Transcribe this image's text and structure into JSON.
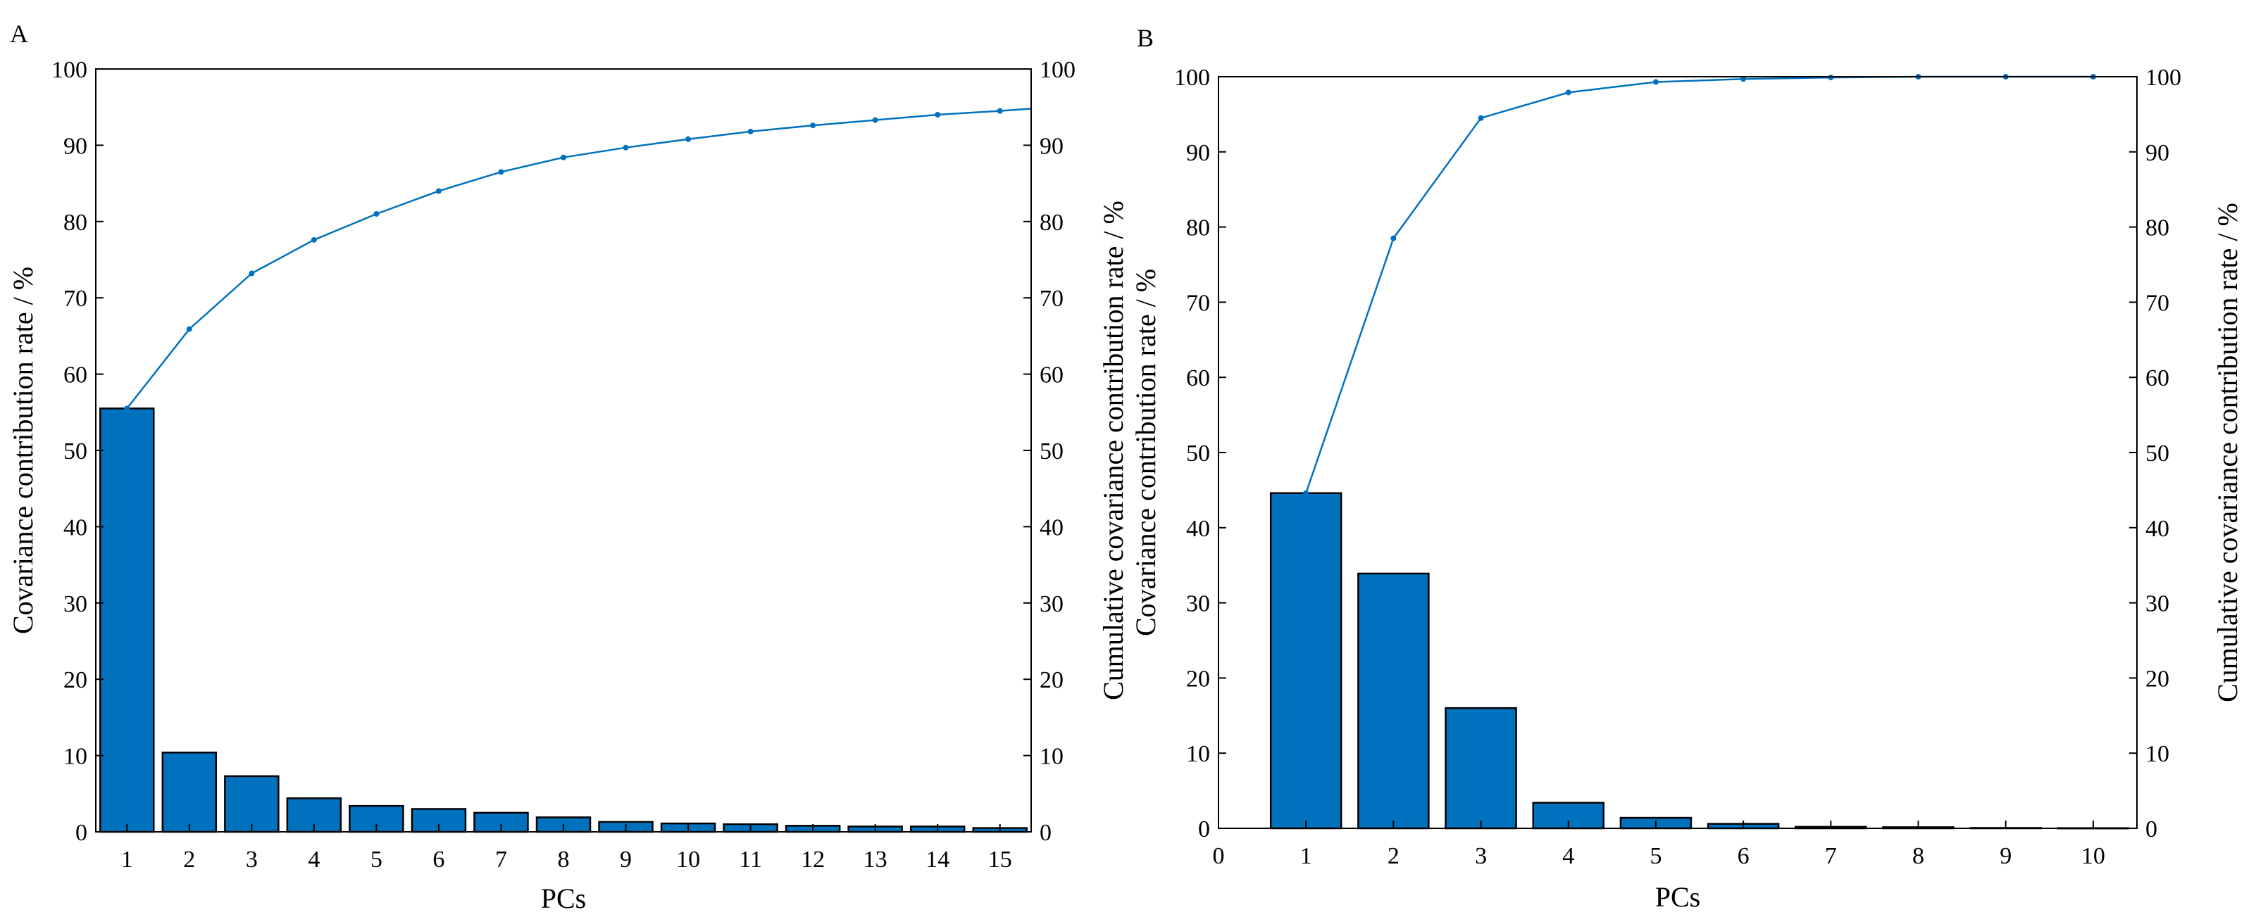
{
  "colors": {
    "bar_fill": "#0072BD",
    "bar_stroke": "#000000",
    "line": "#0072BD",
    "axis": "#000000",
    "background": "#ffffff"
  },
  "chart_data": [
    {
      "panel": "A",
      "type": "bar",
      "overlay": "line",
      "xlabel": "PCs",
      "ylabel_left": "Covariance contribution rate / %",
      "ylabel_right": "Cumulative covariance contribution rate / %",
      "xlim": [
        0.5,
        15.5
      ],
      "ylim": [
        0,
        100
      ],
      "x_ticks": [
        1,
        2,
        3,
        4,
        5,
        6,
        7,
        8,
        9,
        10,
        11,
        12,
        13,
        14,
        15
      ],
      "y_ticks": [
        0,
        10,
        20,
        30,
        40,
        50,
        60,
        70,
        80,
        90,
        100
      ],
      "grid": false,
      "series": [
        {
          "name": "Covariance contribution rate",
          "type": "bar",
          "x": [
            1,
            2,
            3,
            4,
            5,
            6,
            7,
            8,
            9,
            10,
            11,
            12,
            13,
            14,
            15
          ],
          "values": [
            55.5,
            10.4,
            7.3,
            4.4,
            3.4,
            3.0,
            2.5,
            1.9,
            1.3,
            1.1,
            1.0,
            0.8,
            0.7,
            0.7,
            0.5
          ]
        },
        {
          "name": "Cumulative covariance contribution rate",
          "type": "line",
          "x": [
            1,
            2,
            3,
            4,
            5,
            6,
            7,
            8,
            9,
            10,
            11,
            12,
            13,
            14,
            15,
            15.5
          ],
          "values": [
            55.5,
            65.9,
            73.2,
            77.6,
            81.0,
            84.0,
            86.5,
            88.4,
            89.7,
            90.8,
            91.8,
            92.6,
            93.3,
            94.0,
            94.5,
            94.8
          ]
        }
      ]
    },
    {
      "panel": "B",
      "type": "bar",
      "overlay": "line",
      "xlabel": "PCs",
      "ylabel_left": "Covariance contribution rate / %",
      "ylabel_right": "Cumulative covariance contribution rate / %",
      "xlim": [
        0,
        10.5
      ],
      "ylim": [
        0,
        100
      ],
      "x_ticks": [
        0,
        1,
        2,
        3,
        4,
        5,
        6,
        7,
        8,
        9,
        10
      ],
      "y_ticks": [
        0,
        10,
        20,
        30,
        40,
        50,
        60,
        70,
        80,
        90,
        100
      ],
      "grid": false,
      "series": [
        {
          "name": "Covariance contribution rate",
          "type": "bar",
          "x": [
            1,
            2,
            3,
            4,
            5,
            6,
            7,
            8,
            9,
            10
          ],
          "values": [
            44.6,
            33.9,
            16.0,
            3.4,
            1.4,
            0.6,
            0.2,
            0.15,
            0.05,
            0.03
          ]
        },
        {
          "name": "Cumulative covariance contribution rate",
          "type": "line",
          "x": [
            1,
            2,
            3,
            4,
            5,
            6,
            7,
            8,
            9,
            10
          ],
          "values": [
            44.6,
            78.5,
            94.5,
            97.9,
            99.3,
            99.7,
            99.9,
            100,
            100,
            100
          ]
        }
      ]
    }
  ]
}
